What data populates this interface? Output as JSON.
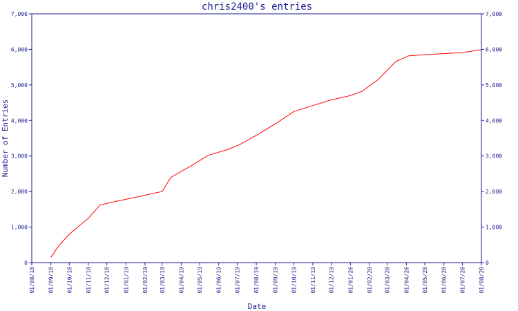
{
  "chart_data": {
    "type": "line",
    "title": "chris2400's entries",
    "xlabel": "Date",
    "ylabel": "Number of Entries",
    "ylim": [
      0,
      7000
    ],
    "y_ticks": [
      0,
      1000,
      2000,
      3000,
      4000,
      5000,
      6000,
      7000
    ],
    "y_tick_labels": [
      "0",
      "1,000",
      "2,000",
      "3,000",
      "4,000",
      "5,000",
      "6,000",
      "7,000"
    ],
    "x_tick_labels": [
      "01/08/18",
      "01/09/18",
      "01/10/18",
      "01/11/18",
      "01/12/18",
      "01/01/19",
      "01/02/19",
      "01/03/19",
      "01/04/19",
      "01/05/19",
      "01/06/19",
      "01/07/19",
      "01/08/19",
      "01/09/19",
      "01/10/19",
      "01/11/19",
      "01/12/19",
      "01/01/20",
      "01/02/20",
      "01/03/20",
      "01/04/20",
      "01/05/20",
      "01/06/20",
      "01/07/20",
      "01/08/20"
    ],
    "x_range": [
      "01/08/18",
      "01/08/20"
    ],
    "grid": false,
    "line_color": "#ff0000",
    "axis_color": "#1a1a8c",
    "series": [
      {
        "points": [
          {
            "x": "2018-09-01",
            "y": 150
          },
          {
            "x": "2018-09-15",
            "y": 500
          },
          {
            "x": "2018-10-01",
            "y": 800
          },
          {
            "x": "2018-11-01",
            "y": 1250
          },
          {
            "x": "2018-11-20",
            "y": 1620
          },
          {
            "x": "2018-12-15",
            "y": 1720
          },
          {
            "x": "2019-01-15",
            "y": 1830
          },
          {
            "x": "2019-02-15",
            "y": 1950
          },
          {
            "x": "2019-03-01",
            "y": 2000
          },
          {
            "x": "2019-03-15",
            "y": 2400
          },
          {
            "x": "2019-04-15",
            "y": 2700
          },
          {
            "x": "2019-05-15",
            "y": 3020
          },
          {
            "x": "2019-06-15",
            "y": 3180
          },
          {
            "x": "2019-07-05",
            "y": 3320
          },
          {
            "x": "2019-08-05",
            "y": 3620
          },
          {
            "x": "2019-09-05",
            "y": 3950
          },
          {
            "x": "2019-10-01",
            "y": 4250
          },
          {
            "x": "2019-11-01",
            "y": 4420
          },
          {
            "x": "2019-12-01",
            "y": 4580
          },
          {
            "x": "2020-01-01",
            "y": 4700
          },
          {
            "x": "2020-01-20",
            "y": 4820
          },
          {
            "x": "2020-02-15",
            "y": 5150
          },
          {
            "x": "2020-03-15",
            "y": 5660
          },
          {
            "x": "2020-04-05",
            "y": 5820
          },
          {
            "x": "2020-05-01",
            "y": 5850
          },
          {
            "x": "2020-06-01",
            "y": 5880
          },
          {
            "x": "2020-07-01",
            "y": 5910
          },
          {
            "x": "2020-08-01",
            "y": 5990
          }
        ]
      }
    ]
  }
}
